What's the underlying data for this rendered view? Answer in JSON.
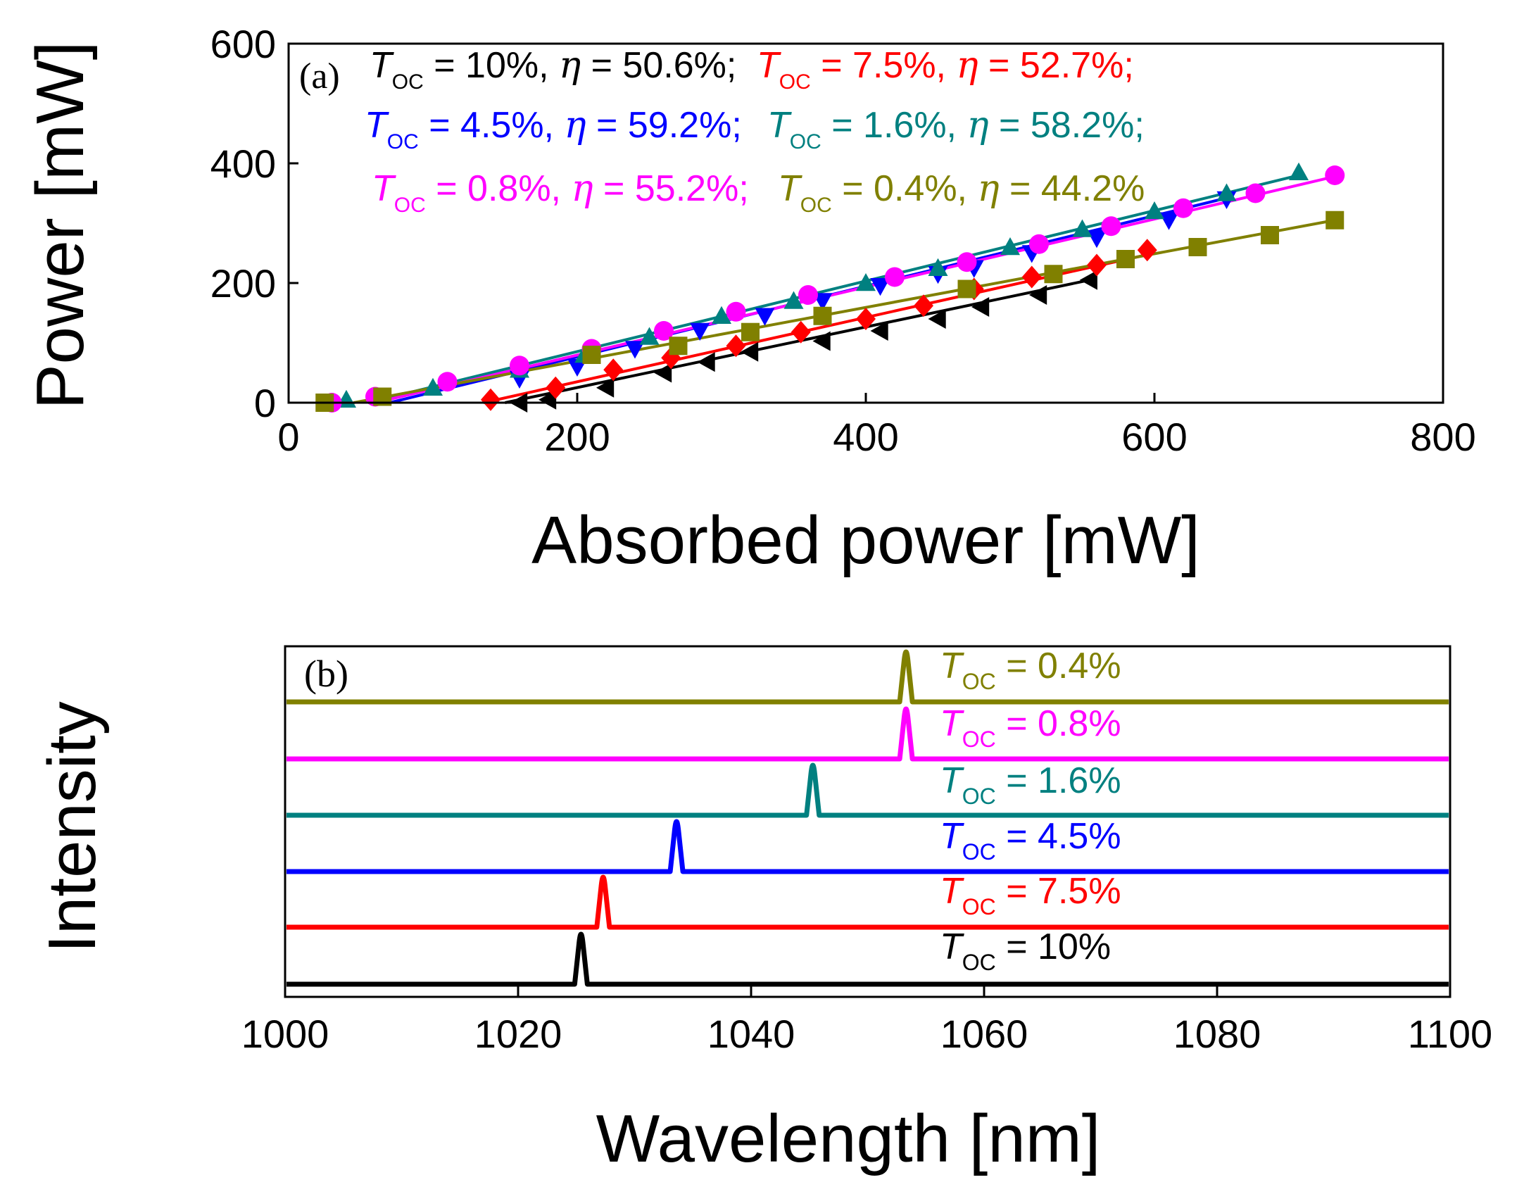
{
  "chart_data": [
    {
      "type": "scatter",
      "panel_label": "(a)",
      "xlabel": "Absorbed power [mW]",
      "ylabel": "Power [mW]",
      "xlim": [
        0,
        800
      ],
      "ylim": [
        0,
        600
      ],
      "xticks": [
        "0",
        "200",
        "400",
        "600",
        "800"
      ],
      "yticks": [
        "0",
        "200",
        "400",
        "600"
      ],
      "annotation_rows": [
        [
          {
            "t": "T",
            "sub": "OC",
            "rest": " = 10%,",
            "eta": "η",
            "eta_rest": " = 50.6%;",
            "color": "#000000"
          },
          {
            "t": "T",
            "sub": "OC",
            "rest": " = 7.5%,",
            "eta": "η",
            "eta_rest": " = 52.7%;",
            "color": "#ff0000"
          }
        ],
        [
          {
            "t": "T",
            "sub": "OC",
            "rest": " = 4.5%,",
            "eta": "η",
            "eta_rest": " = 59.2%;",
            "color": "#0000ff"
          },
          {
            "t": "T",
            "sub": "OC",
            "rest": " = 1.6%,",
            "eta": "η",
            "eta_rest": " = 58.2%;",
            "color": "#008080"
          }
        ],
        [
          {
            "t": "T",
            "sub": "OC",
            "rest": " = 0.8%,",
            "eta": "η",
            "eta_rest": " = 55.2%;",
            "color": "#ff00ff"
          },
          {
            "t": "T",
            "sub": "OC",
            "rest": " = 0.4%,",
            "eta": "η",
            "eta_rest": " = 44.2%",
            "color": "#808000"
          }
        ]
      ],
      "series": [
        {
          "name": "T_OC = 10%",
          "color": "#000000",
          "marker": "triangle-left",
          "x": [
            160,
            180,
            220,
            260,
            290,
            320,
            370,
            410,
            450,
            480,
            520,
            555
          ],
          "y": [
            0,
            5,
            25,
            50,
            68,
            85,
            103,
            120,
            140,
            160,
            180,
            205
          ],
          "fit": [
            [
              150,
              0
            ],
            [
              555,
              205
            ]
          ]
        },
        {
          "name": "T_OC = 7.5%",
          "color": "#ff0000",
          "marker": "diamond",
          "x": [
            140,
            185,
            225,
            265,
            310,
            355,
            400,
            440,
            475,
            515,
            560,
            595
          ],
          "y": [
            5,
            25,
            55,
            75,
            95,
            118,
            140,
            162,
            190,
            210,
            230,
            255
          ],
          "fit": [
            [
              135,
              0
            ],
            [
              600,
              250
            ]
          ]
        },
        {
          "name": "T_OC = 4.5%",
          "color": "#0000ff",
          "marker": "triangle-down",
          "x": [
            160,
            200,
            240,
            285,
            330,
            370,
            410,
            450,
            475,
            515,
            560,
            610,
            650
          ],
          "y": [
            40,
            60,
            90,
            120,
            145,
            170,
            195,
            215,
            225,
            250,
            275,
            305,
            340
          ],
          "fit": [
            [
              70,
              0
            ],
            [
              655,
              345
            ]
          ]
        },
        {
          "name": "T_OC = 1.6%",
          "color": "#008080",
          "marker": "triangle-up",
          "x": [
            40,
            100,
            160,
            205,
            250,
            300,
            350,
            400,
            450,
            500,
            550,
            600,
            650,
            700
          ],
          "y": [
            5,
            25,
            55,
            80,
            110,
            145,
            170,
            200,
            225,
            260,
            290,
            320,
            350,
            385
          ],
          "fit": [
            [
              55,
              0
            ],
            [
              700,
              380
            ]
          ]
        },
        {
          "name": "T_OC = 0.8%",
          "color": "#ff00ff",
          "marker": "circle",
          "x": [
            30,
            60,
            110,
            160,
            210,
            260,
            310,
            360,
            420,
            470,
            520,
            570,
            620,
            670,
            725
          ],
          "y": [
            0,
            10,
            35,
            62,
            90,
            120,
            152,
            180,
            210,
            235,
            265,
            295,
            325,
            350,
            380
          ],
          "fit": [
            [
              60,
              0
            ],
            [
              725,
              378
            ]
          ]
        },
        {
          "name": "T_OC = 0.4%",
          "color": "#808000",
          "marker": "square",
          "x": [
            25,
            65,
            210,
            270,
            320,
            370,
            470,
            530,
            580,
            630,
            680,
            725
          ],
          "y": [
            0,
            10,
            80,
            95,
            118,
            145,
            190,
            215,
            240,
            260,
            280,
            305
          ],
          "fit": [
            [
              45,
              0
            ],
            [
              725,
              305
            ]
          ]
        }
      ]
    },
    {
      "type": "line",
      "panel_label": "(b)",
      "xlabel": "Wavelength [nm]",
      "ylabel": "Intensity",
      "xlim": [
        1000,
        1100
      ],
      "xticks": [
        "1000",
        "1020",
        "1040",
        "1060",
        "1080",
        "1100"
      ],
      "series": [
        {
          "label_t": "T",
          "label_sub": "OC",
          "label_rest": " = 0.4%",
          "color": "#808000",
          "peak_nm": 1053.3
        },
        {
          "label_t": "T",
          "label_sub": "OC",
          "label_rest": " = 0.8%",
          "color": "#ff00ff",
          "peak_nm": 1053.3
        },
        {
          "label_t": "T",
          "label_sub": "OC",
          "label_rest": " = 1.6%",
          "color": "#008080",
          "peak_nm": 1045.3
        },
        {
          "label_t": "T",
          "label_sub": "OC",
          "label_rest": " = 4.5%",
          "color": "#0000ff",
          "peak_nm": 1033.6
        },
        {
          "label_t": "T",
          "label_sub": "OC",
          "label_rest": " = 7.5%",
          "color": "#ff0000",
          "peak_nm": 1027.3
        },
        {
          "label_t": "T",
          "label_sub": "OC",
          "label_rest": " = 10%",
          "color": "#000000",
          "peak_nm": 1025.4
        }
      ]
    }
  ]
}
